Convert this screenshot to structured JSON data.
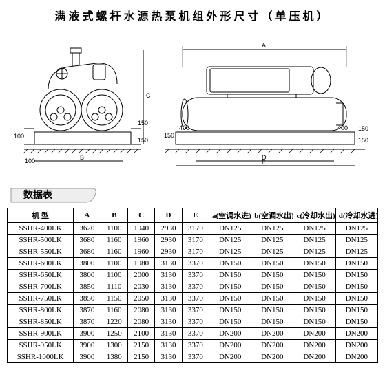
{
  "title": "满液式螺杆水源热泵机组外形尺寸（单压机）",
  "table_title": "数据表",
  "headers": {
    "model": "机 型",
    "A": "A",
    "B": "B",
    "C": "C",
    "D": "D",
    "E": "E",
    "a": "a(空调水进)",
    "b": "b(空调水出)",
    "c": "c(冷却水出)",
    "d": "d(冷却水进)"
  },
  "rows": [
    {
      "m": "SSHR-400LK",
      "A": "3620",
      "B": "1100",
      "C": "1940",
      "D": "2930",
      "E": "3170",
      "a": "DN125",
      "b": "DN125",
      "c": "DN125",
      "d": "DN125"
    },
    {
      "m": "SSHR-500LK",
      "A": "3680",
      "B": "1160",
      "C": "1960",
      "D": "2930",
      "E": "3170",
      "a": "DN125",
      "b": "DN125",
      "c": "DN125",
      "d": "DN125"
    },
    {
      "m": "SSHR-550LK",
      "A": "3680",
      "B": "1160",
      "C": "1960",
      "D": "2930",
      "E": "3170",
      "a": "DN125",
      "b": "DN125",
      "c": "DN125",
      "d": "DN125"
    },
    {
      "m": "SSHR-600LK",
      "A": "3800",
      "B": "1100",
      "C": "1980",
      "D": "3130",
      "E": "3370",
      "a": "DN150",
      "b": "DN150",
      "c": "DN150",
      "d": "DN150"
    },
    {
      "m": "SSHR-650LK",
      "A": "3800",
      "B": "1100",
      "C": "2000",
      "D": "3130",
      "E": "3370",
      "a": "DN150",
      "b": "DN150",
      "c": "DN150",
      "d": "DN150"
    },
    {
      "m": "SSHR-700LK",
      "A": "3850",
      "B": "1110",
      "C": "2030",
      "D": "3130",
      "E": "3370",
      "a": "DN150",
      "b": "DN150",
      "c": "DN150",
      "d": "DN150"
    },
    {
      "m": "SSHR-750LK",
      "A": "3850",
      "B": "1150",
      "C": "2050",
      "D": "3130",
      "E": "3370",
      "a": "DN150",
      "b": "DN150",
      "c": "DN150",
      "d": "DN150"
    },
    {
      "m": "SSHR-800LK",
      "A": "3870",
      "B": "1160",
      "C": "2080",
      "D": "3130",
      "E": "3370",
      "a": "DN150",
      "b": "DN150",
      "c": "DN150",
      "d": "DN150"
    },
    {
      "m": "SSHR-850LK",
      "A": "3870",
      "B": "1220",
      "C": "2080",
      "D": "3130",
      "E": "3370",
      "a": "DN150",
      "b": "DN150",
      "c": "DN150",
      "d": "DN150"
    },
    {
      "m": "SSHR-900LK",
      "A": "3900",
      "B": "1250",
      "C": "2100",
      "D": "3130",
      "E": "3370",
      "a": "DN200",
      "b": "DN200",
      "c": "DN200",
      "d": "DN200"
    },
    {
      "m": "SSHR-950LK",
      "A": "3900",
      "B": "1300",
      "C": "2150",
      "D": "3130",
      "E": "3370",
      "a": "DN200",
      "b": "DN200",
      "c": "DN200",
      "d": "DN200"
    },
    {
      "m": "SSHR-1000LK",
      "A": "3900",
      "B": "1380",
      "C": "2150",
      "D": "3130",
      "E": "3370",
      "a": "DN200",
      "b": "DN200",
      "c": "DN200",
      "d": "DN200"
    }
  ],
  "dim_labels": {
    "l100a": "100",
    "l100b": "100",
    "l150a": "150",
    "l150b": "150",
    "l150c": "150",
    "l150d": "150",
    "l400a": "400",
    "l400b": "400",
    "A": "A",
    "B": "B",
    "C": "C",
    "D": "D",
    "E": "E"
  },
  "colors": {
    "stroke": "#000",
    "bg": "#fff",
    "hatch": "#000",
    "pill": "#eeeeee"
  }
}
